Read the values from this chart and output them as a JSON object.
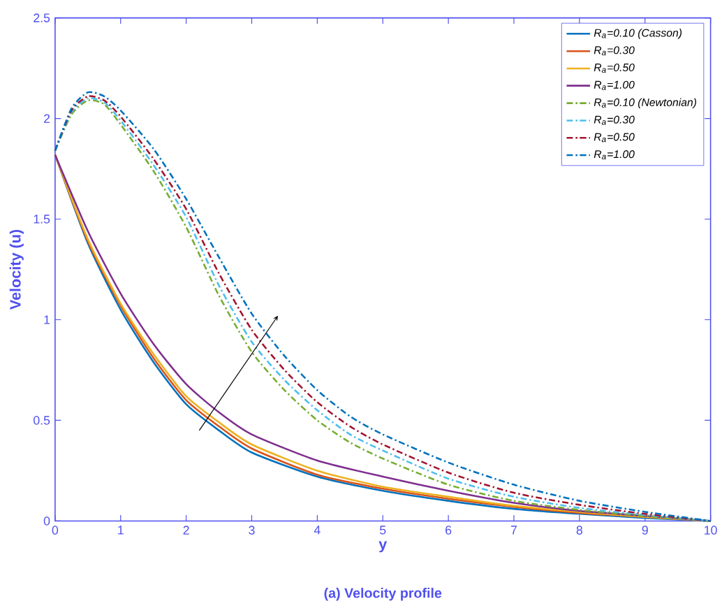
{
  "chart_data": {
    "type": "line",
    "title": "(a) Velocity profile",
    "xlabel": "y",
    "ylabel": "Velocity (u)",
    "xlim": [
      0,
      10
    ],
    "ylim": [
      0,
      2.5
    ],
    "xticks": [
      0,
      1,
      2,
      3,
      4,
      5,
      6,
      7,
      8,
      9,
      10
    ],
    "yticks": [
      0,
      0.5,
      1,
      1.5,
      2,
      2.5
    ],
    "legend": "top right",
    "grid": false,
    "marker": "none",
    "series": [
      {
        "name": "R$_{a}$=0.10 (Casson)",
        "color": "#0072bd",
        "line_style": "solid",
        "x": [
          0,
          0.5,
          1,
          1.5,
          2,
          2.5,
          3,
          4,
          5,
          6,
          7,
          8,
          9,
          10
        ],
        "values": [
          1.82,
          1.38,
          1.05,
          0.79,
          0.58,
          0.45,
          0.34,
          0.22,
          0.15,
          0.1,
          0.06,
          0.035,
          0.015,
          0
        ]
      },
      {
        "name": "R$_{a}$=0.30",
        "color": "#d95319",
        "line_style": "solid",
        "x": [
          0,
          0.5,
          1,
          1.5,
          2,
          2.5,
          3,
          4,
          5,
          6,
          7,
          8,
          9,
          10
        ],
        "values": [
          1.82,
          1.39,
          1.07,
          0.81,
          0.6,
          0.47,
          0.36,
          0.23,
          0.16,
          0.11,
          0.07,
          0.04,
          0.02,
          0
        ]
      },
      {
        "name": "R$_{a}$=0.50",
        "color": "#edb120",
        "line_style": "solid",
        "x": [
          0,
          0.5,
          1,
          1.5,
          2,
          2.5,
          3,
          4,
          5,
          6,
          7,
          8,
          9,
          10
        ],
        "values": [
          1.82,
          1.4,
          1.08,
          0.83,
          0.62,
          0.49,
          0.38,
          0.25,
          0.17,
          0.12,
          0.075,
          0.045,
          0.02,
          0
        ]
      },
      {
        "name": "R$_{a}$=1.00",
        "color": "#7e2f8e",
        "line_style": "solid",
        "x": [
          0,
          0.5,
          1,
          1.5,
          2,
          2.5,
          3,
          4,
          5,
          6,
          7,
          8,
          9,
          10
        ],
        "values": [
          1.82,
          1.44,
          1.13,
          0.88,
          0.68,
          0.54,
          0.43,
          0.3,
          0.22,
          0.15,
          0.09,
          0.05,
          0.025,
          0
        ]
      },
      {
        "name": "R$_{a}$=0.10 (Newtonian)",
        "color": "#77ac30",
        "line_style": "dashed",
        "x": [
          0,
          0.25,
          0.5,
          0.75,
          1,
          1.5,
          2,
          2.5,
          3,
          3.5,
          4,
          4.5,
          5,
          6,
          7,
          8,
          9,
          10
        ],
        "values": [
          1.84,
          2.02,
          2.09,
          2.07,
          1.97,
          1.74,
          1.46,
          1.12,
          0.84,
          0.65,
          0.5,
          0.39,
          0.31,
          0.18,
          0.1,
          0.055,
          0.025,
          0
        ]
      },
      {
        "name": "R$_{a}$=0.30",
        "color": "#4dbeee",
        "line_style": "dashed",
        "x": [
          0,
          0.25,
          0.5,
          0.75,
          1,
          1.5,
          2,
          2.5,
          3,
          3.5,
          4,
          4.5,
          5,
          6,
          7,
          8,
          9,
          10
        ],
        "values": [
          1.84,
          2.03,
          2.1,
          2.08,
          1.99,
          1.77,
          1.51,
          1.17,
          0.89,
          0.7,
          0.55,
          0.43,
          0.35,
          0.21,
          0.12,
          0.065,
          0.03,
          0
        ]
      },
      {
        "name": "R$_{a}$=0.50",
        "color": "#a2142f",
        "line_style": "dashed",
        "x": [
          0,
          0.25,
          0.5,
          0.75,
          1,
          1.5,
          2,
          2.5,
          3,
          3.5,
          4,
          4.5,
          5,
          6,
          7,
          8,
          9,
          10
        ],
        "values": [
          1.84,
          2.04,
          2.11,
          2.09,
          2.01,
          1.8,
          1.55,
          1.23,
          0.95,
          0.75,
          0.59,
          0.47,
          0.38,
          0.24,
          0.14,
          0.08,
          0.035,
          0
        ]
      },
      {
        "name": "R$_{a}$=1.00",
        "color": "#0072bd",
        "line_style": "dashed",
        "x": [
          0,
          0.25,
          0.5,
          0.75,
          1,
          1.5,
          2,
          2.5,
          3,
          3.5,
          4,
          4.5,
          5,
          6,
          7,
          8,
          9,
          10
        ],
        "values": [
          1.84,
          2.05,
          2.13,
          2.11,
          2.04,
          1.85,
          1.6,
          1.31,
          1.03,
          0.82,
          0.65,
          0.52,
          0.43,
          0.29,
          0.18,
          0.1,
          0.045,
          0
        ]
      }
    ]
  }
}
